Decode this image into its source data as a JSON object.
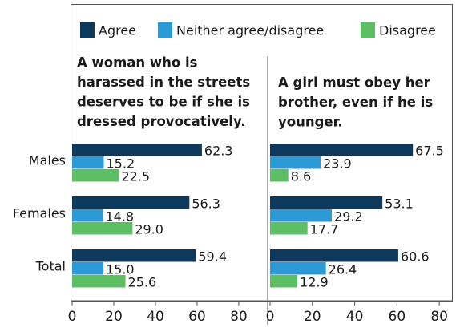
{
  "chart_data": [
    {
      "type": "barh",
      "title": [
        "A woman who is",
        "harassed in the streets",
        "deserves to be if she is",
        "dressed provocatively."
      ],
      "categories": [
        "Males",
        "Females",
        "Total"
      ],
      "series": [
        {
          "name": "Agree",
          "color": "#0d3a5c",
          "values": [
            62.3,
            56.3,
            59.4
          ],
          "value_labels": [
            "62.3",
            "56.3",
            "59.4"
          ]
        },
        {
          "name": "Neither agree/disagree",
          "color": "#2b9ad6",
          "values": [
            15.2,
            14.8,
            15.0
          ],
          "value_labels": [
            "15.2",
            "14.8",
            "15.0"
          ]
        },
        {
          "name": "Disagree",
          "color": "#5cbf63",
          "values": [
            22.5,
            29.0,
            25.6
          ],
          "value_labels": [
            "22.5",
            "29.0",
            "25.6"
          ]
        }
      ],
      "xlim": [
        0,
        93.5
      ],
      "xticks": [
        0,
        20,
        40,
        60,
        80
      ]
    },
    {
      "type": "barh",
      "title": [
        "A girl must obey her",
        "brother, even if he is",
        "younger."
      ],
      "series": [
        {
          "color": "#0d3a5c",
          "values": [
            67.5,
            53.1,
            60.6
          ],
          "value_labels": [
            "67.5",
            "53.1",
            "60.6"
          ]
        },
        {
          "color": "#2b9ad6",
          "values": [
            23.9,
            29.2,
            26.4
          ],
          "value_labels": [
            "23.9",
            "29.2",
            "26.4"
          ]
        },
        {
          "color": "#5cbf63",
          "values": [
            8.6,
            17.7,
            12.9
          ],
          "value_labels": [
            "8.6",
            "17.7",
            "12.9"
          ]
        }
      ],
      "xlim": [
        0,
        86
      ],
      "xticks": [
        0,
        20,
        40,
        60,
        80
      ]
    }
  ]
}
